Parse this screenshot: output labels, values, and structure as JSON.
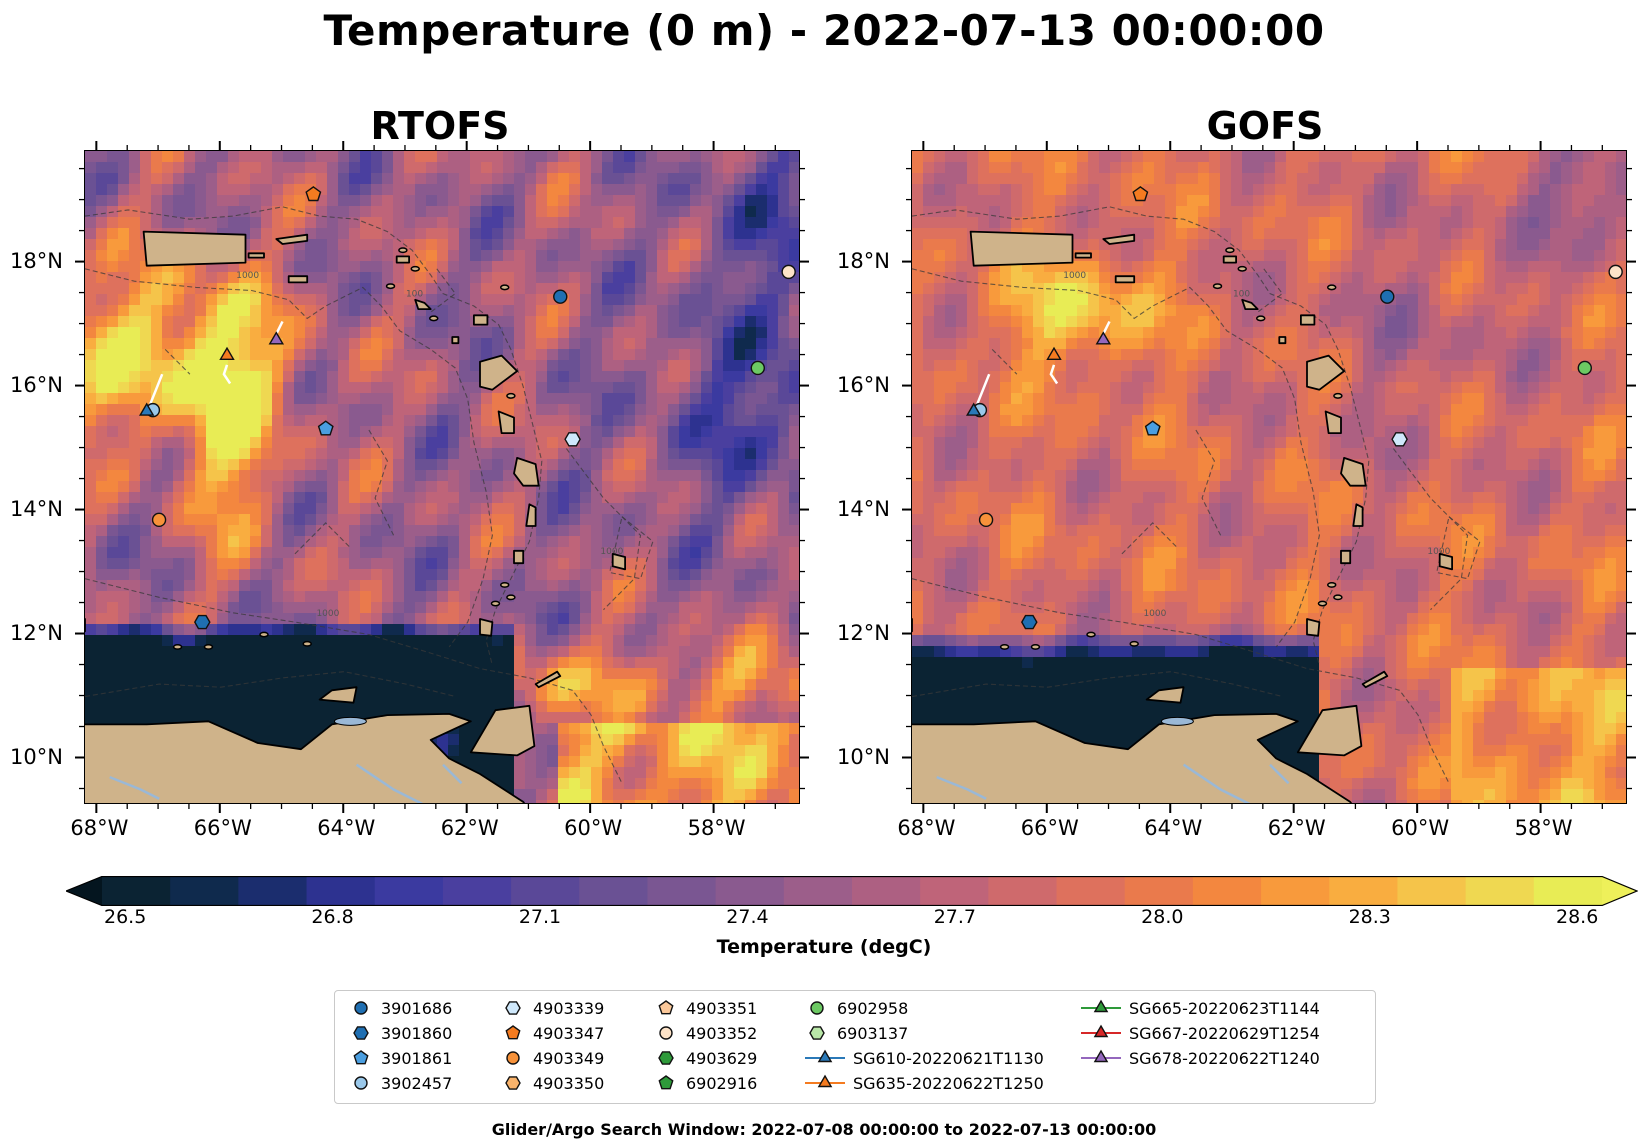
{
  "figure": {
    "title": "Temperature (0 m) - 2022-07-13 00:00:00",
    "footnote": "Glider/Argo Search Window: 2022-07-08 00:00:00 to 2022-07-13 00:00:00"
  },
  "panels": [
    {
      "title": "RTOFS"
    },
    {
      "title": "GOFS"
    }
  ],
  "axes": {
    "lon_ticks": [
      "68°W",
      "66°W",
      "64°W",
      "62°W",
      "60°W",
      "58°W"
    ],
    "lat_ticks": [
      "18°N",
      "16°N",
      "14°N",
      "12°N",
      "10°N"
    ],
    "lon_range": [
      -68.2,
      -56.6
    ],
    "lat_range": [
      9.25,
      19.8
    ]
  },
  "colorbar": {
    "label": "Temperature (degC)",
    "ticks": [
      "26.5",
      "26.8",
      "27.1",
      "27.4",
      "27.7",
      "28.0",
      "28.3",
      "28.6"
    ],
    "min": 26.5,
    "max": 28.6,
    "extend": "both",
    "colormap": "thermal",
    "colors": [
      "#0b2333",
      "#0f2a4d",
      "#1b2d6e",
      "#2d3290",
      "#3b3aa0",
      "#4a3f9f",
      "#5a4898",
      "#6a5194",
      "#7a5692",
      "#8a5a8f",
      "#9c5e8a",
      "#ad6082",
      "#bf6479",
      "#cf6a6c",
      "#de715d",
      "#ea7a4c",
      "#f3873f",
      "#f89a3c",
      "#f9ad40",
      "#f5c44a",
      "#efd851",
      "#e8ec55"
    ]
  },
  "legend": {
    "items": [
      {
        "label": "3901686",
        "marker": "circle",
        "color": "#1f6fb2"
      },
      {
        "label": "3901860",
        "marker": "hexagon",
        "color": "#1f6fb2"
      },
      {
        "label": "3901861",
        "marker": "pentagon",
        "color": "#4a9ee0"
      },
      {
        "label": "3902457",
        "marker": "circle",
        "color": "#9ac8ea"
      },
      {
        "label": "4903339",
        "marker": "hexagon",
        "color": "#cfe8fb"
      },
      {
        "label": "4903347",
        "marker": "pentagon",
        "color": "#f47b20"
      },
      {
        "label": "4903349",
        "marker": "circle",
        "color": "#f7923a"
      },
      {
        "label": "4903350",
        "marker": "hexagon",
        "color": "#f9b36b"
      },
      {
        "label": "4903351",
        "marker": "pentagon",
        "color": "#fbc89a"
      },
      {
        "label": "4903352",
        "marker": "circle",
        "color": "#fde3c8"
      },
      {
        "label": "4903629",
        "marker": "hexagon",
        "color": "#2e9a3a"
      },
      {
        "label": "6902916",
        "marker": "pentagon",
        "color": "#2e9a3a"
      },
      {
        "label": "6902958",
        "marker": "circle",
        "color": "#6cc963"
      },
      {
        "label": "6903137",
        "marker": "hexagon",
        "color": "#b9e7a8"
      },
      {
        "label": "SG610-20220621T1130",
        "marker": "triangle-line",
        "color": "#2a79b8"
      },
      {
        "label": "SG635-20220622T1250",
        "marker": "triangle-line",
        "color": "#f47b20"
      },
      {
        "label": "SG665-20220623T1144",
        "marker": "triangle-line",
        "color": "#2e9a3a"
      },
      {
        "label": "SG667-20220629T1254",
        "marker": "triangle-line",
        "color": "#d62728"
      },
      {
        "label": "SG678-20220622T1240",
        "marker": "triangle-line",
        "color": "#9467bd"
      }
    ]
  },
  "observations": [
    {
      "id": "3901686",
      "lon": -60.5,
      "lat": 17.45
    },
    {
      "id": "3901860",
      "lon": -66.3,
      "lat": 12.2
    },
    {
      "id": "3901861",
      "lon": -64.3,
      "lat": 15.32
    },
    {
      "id": "3902457",
      "lon": -67.1,
      "lat": 15.62
    },
    {
      "id": "4903339",
      "lon": -60.3,
      "lat": 15.15
    },
    {
      "id": "4903347",
      "lon": -64.5,
      "lat": 19.1
    },
    {
      "id": "4903349",
      "lon": -67.0,
      "lat": 13.85
    },
    {
      "id": "4903352",
      "lon": -56.8,
      "lat": 17.85
    },
    {
      "id": "6902958",
      "lon": -57.3,
      "lat": 16.3
    },
    {
      "id": "SG610-20220621T1130",
      "lon": -67.2,
      "lat": 15.6
    },
    {
      "id": "SG635-20220622T1250",
      "lon": -65.9,
      "lat": 16.5
    },
    {
      "id": "SG678-20220622T1240",
      "lon": -65.1,
      "lat": 16.75
    }
  ],
  "contour_labels": [
    "1000",
    "1000",
    "100",
    "1000"
  ]
}
